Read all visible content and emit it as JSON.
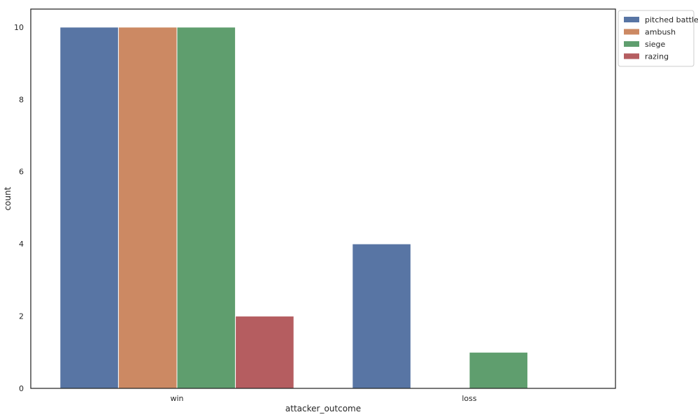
{
  "chart_data": {
    "type": "bar",
    "xlabel": "attacker_outcome",
    "ylabel": "count",
    "categories": [
      "win",
      "loss"
    ],
    "series": [
      {
        "name": "pitched battle",
        "color": "#5875a4",
        "values": [
          10,
          4
        ]
      },
      {
        "name": "ambush",
        "color": "#cc8963",
        "values": [
          10,
          0
        ]
      },
      {
        "name": "siege",
        "color": "#5f9e6e",
        "values": [
          10,
          1
        ]
      },
      {
        "name": "razing",
        "color": "#b55d60",
        "values": [
          2,
          0
        ]
      }
    ],
    "ylim": [
      0,
      10.5
    ],
    "yticks": [
      0,
      2,
      4,
      6,
      8,
      10
    ],
    "grid": false,
    "legend_position": "outside top-right"
  }
}
